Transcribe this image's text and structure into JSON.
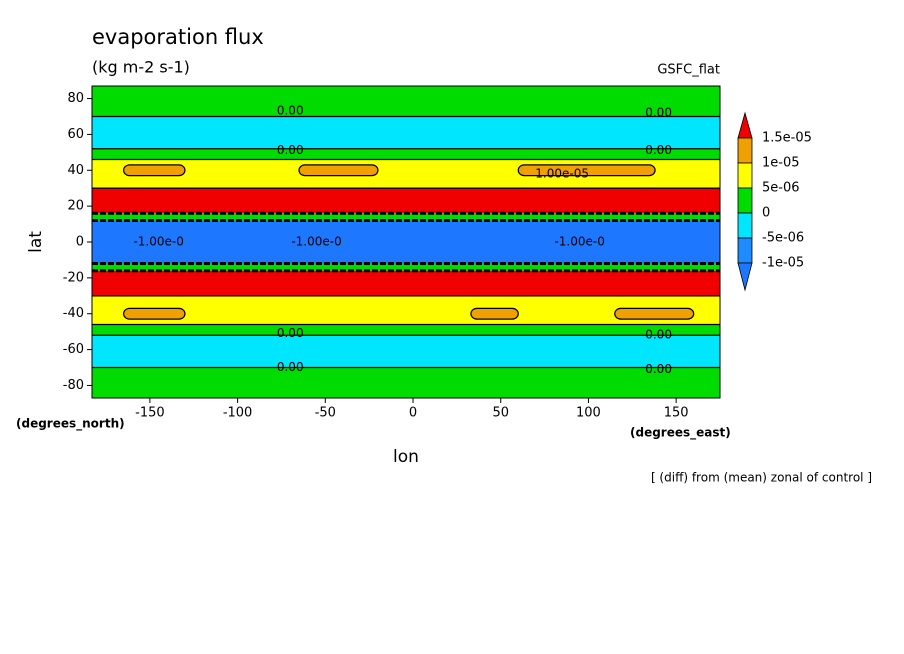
{
  "chart_data": {
    "type": "zonal-contour",
    "title": "evaporation flux",
    "subtitle": "(kg m-2 s-1)",
    "source": "GSFC_flat",
    "x_label": "lon",
    "y_label": "lat",
    "x_units": "(degrees_east)",
    "y_units": "(degrees_north)",
    "note": "[ (diff) from (mean) zonal of control ]",
    "xlim": [
      -183,
      175
    ],
    "ylim": [
      -87,
      87
    ],
    "xticks": [
      -150,
      -100,
      -50,
      0,
      50,
      100,
      150
    ],
    "yticks": [
      -80,
      -60,
      -40,
      -20,
      0,
      20,
      40,
      60,
      80
    ],
    "y_edges": [
      87,
      70,
      52,
      46,
      30,
      16,
      12,
      -12,
      -16,
      -30,
      -46,
      -52,
      -70,
      -87
    ],
    "values": [
      2e-06,
      -3e-06,
      2e-06,
      7e-06,
      2e-05,
      2e-06,
      -1.5e-05,
      2e-06,
      2e-05,
      7e-06,
      2e-06,
      -3e-06,
      2e-06
    ],
    "patches": [
      {
        "x": [
          -165,
          -130
        ],
        "y": [
          43,
          37
        ],
        "value": 1.1e-05
      },
      {
        "x": [
          -65,
          -20
        ],
        "y": [
          43,
          37
        ],
        "value": 1.1e-05
      },
      {
        "x": [
          60,
          138
        ],
        "y": [
          43,
          37
        ],
        "value": 1.1e-05
      },
      {
        "x": [
          -165,
          -130
        ],
        "y": [
          -37,
          -43
        ],
        "value": 1.1e-05
      },
      {
        "x": [
          33,
          60
        ],
        "y": [
          -37,
          -43
        ],
        "value": 1.1e-05
      },
      {
        "x": [
          115,
          160
        ],
        "y": [
          -37,
          -43
        ],
        "value": 1.1e-05
      }
    ],
    "contour_labels": [
      {
        "text": "0.00",
        "x": -70,
        "y": 73
      },
      {
        "text": "0.00",
        "x": 140,
        "y": 72
      },
      {
        "text": "0.00",
        "x": -70,
        "y": 51
      },
      {
        "text": "0.00",
        "x": 140,
        "y": 51
      },
      {
        "text": "1.00e-05",
        "x": 85,
        "y": 38
      },
      {
        "text": "-1.00e-0",
        "x": -145,
        "y": 0
      },
      {
        "text": "-1.00e-0",
        "x": -55,
        "y": 0
      },
      {
        "text": "-1.00e-0",
        "x": 95,
        "y": 0
      },
      {
        "text": "0.00",
        "x": -70,
        "y": -51
      },
      {
        "text": "0.00",
        "x": 140,
        "y": -52
      },
      {
        "text": "0.00",
        "x": -70,
        "y": -70
      },
      {
        "text": "0.00",
        "x": 140,
        "y": -71
      }
    ],
    "levels": [
      {
        "value": -1e-05,
        "label": "-1e-05"
      },
      {
        "value": -5e-06,
        "label": "-5e-06"
      },
      0,
      {
        "value": 5e-06,
        "label": "5e-06"
      },
      {
        "value": 1e-05,
        "label": "1e-05"
      },
      {
        "value": 1.5e-05,
        "label": "1.5e-05"
      }
    ],
    "colors": [
      "#1e78ff",
      "#1e8cff",
      "#00e6ff",
      "#00dc00",
      "#ffff00",
      "#f0a000",
      "#f00000"
    ]
  }
}
